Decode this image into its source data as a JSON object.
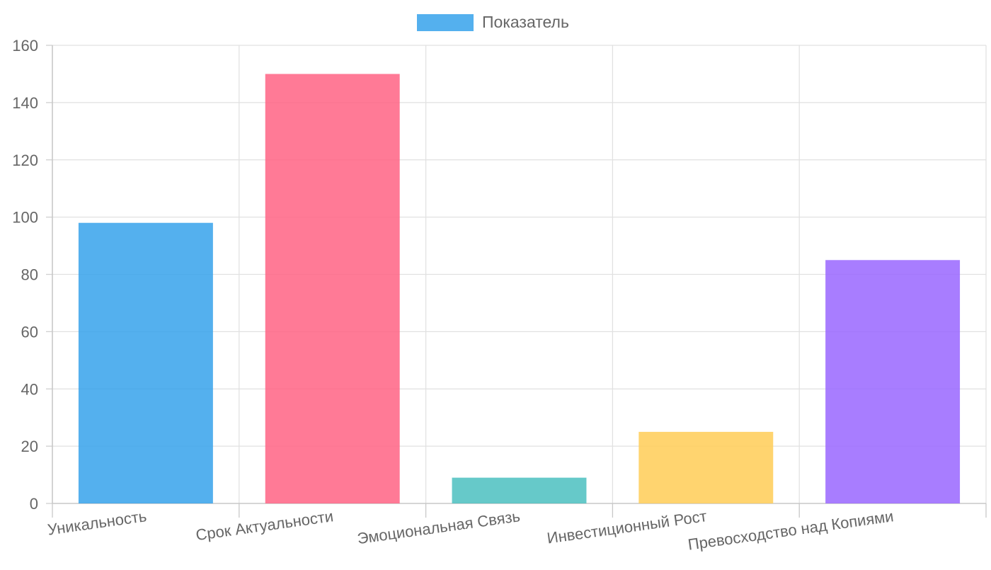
{
  "chart_data": {
    "type": "bar",
    "title": "",
    "xlabel": "",
    "ylabel": "",
    "categories": [
      "Уникальность",
      "Срок Актуальности",
      "Эмоциональная Связь",
      "Инвестиционный Рост",
      "Превосходство над Копиями"
    ],
    "series": [
      {
        "name": "Показатель",
        "values": [
          98,
          150,
          9,
          25,
          85
        ]
      }
    ],
    "colors": [
      "#36A2EB",
      "#FF6384",
      "#4BC0C0",
      "#FFCD56",
      "#9966FF"
    ],
    "ylim": [
      0,
      160
    ],
    "yticks": [
      0,
      20,
      40,
      60,
      80,
      100,
      120,
      140,
      160
    ],
    "grid": true,
    "legend": {
      "position": "top-center",
      "label": "Показатель",
      "color": "#36A2EB"
    }
  }
}
